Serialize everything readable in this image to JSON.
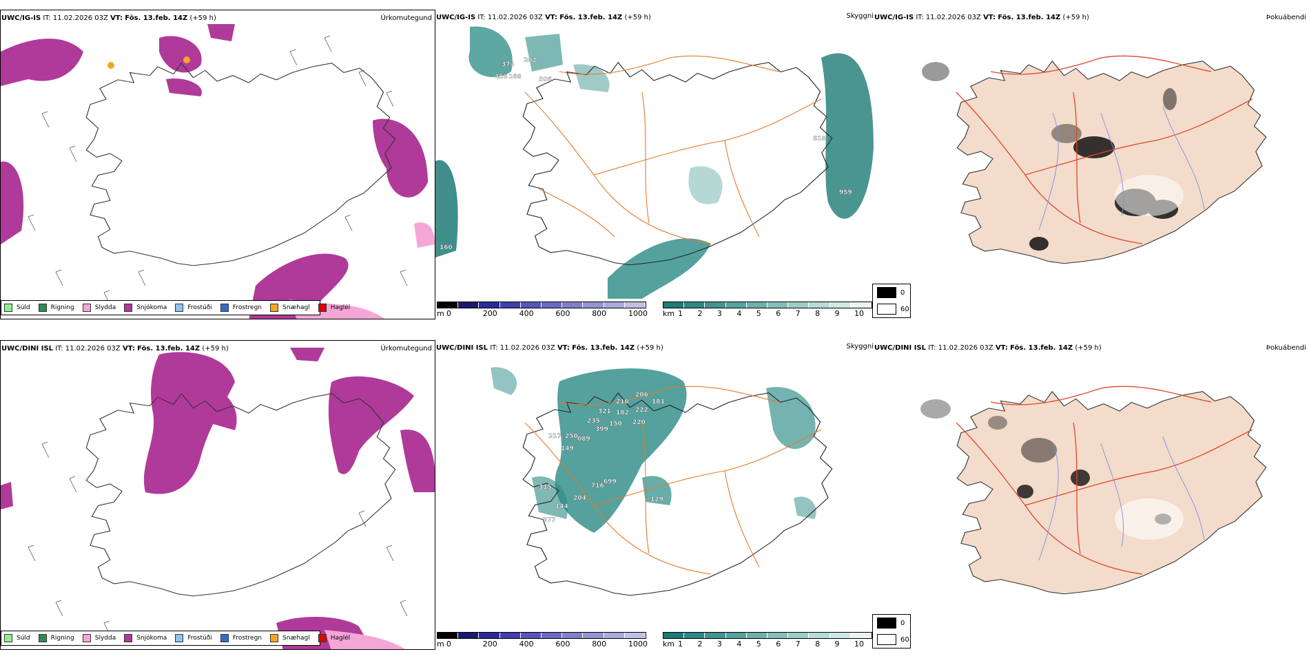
{
  "panels": {
    "top_precip": {
      "title": {
        "model": "UWC/IG-IS",
        "it_label": "IT:",
        "it": "11.02.2026 03Z",
        "vt_label": "VT:",
        "vt": "Fös. 13.feb. 14Z",
        "lead": "(+59 h)"
      },
      "name": "Úrkomutegund"
    },
    "top_vis": {
      "title": {
        "model": "UWC/IG-IS",
        "it_label": "IT:",
        "it": "11.02.2026 03Z",
        "vt_label": "VT:",
        "vt": "Fös. 13.feb. 14Z",
        "lead": "(+59 h)"
      },
      "name": "Skyggni",
      "labels": [
        "374",
        "202",
        "456",
        "168",
        "506",
        "618",
        "959",
        "160"
      ]
    },
    "top_fog": {
      "title": {
        "model": "UWC/IG-IS",
        "it_label": "IT:",
        "it": "11.02.2026 03Z",
        "vt_label": "VT:",
        "vt": "Fös. 13.feb. 14Z",
        "lead": "(+59 h)"
      },
      "name": "Þokuábendi"
    },
    "bottom_precip": {
      "title": {
        "model": "UWC/DINI ISL",
        "it_label": "IT:",
        "it": "11.02.2026 03Z",
        "vt_label": "VT:",
        "vt": "Fös. 13.feb. 14Z",
        "lead": "(+59 h)"
      },
      "name": "Úrkomutegund"
    },
    "bottom_vis": {
      "title": {
        "model": "UWC/DINI ISL",
        "it_label": "IT:",
        "it": "11.02.2026 03Z",
        "vt_label": "VT:",
        "vt": "Fös. 13.feb. 14Z",
        "lead": "(+59 h)"
      },
      "name": "Skyggni",
      "labels": [
        "321",
        "216",
        "206",
        "235",
        "182",
        "222",
        "399",
        "150",
        "220",
        "217",
        "250",
        "089",
        "149",
        "315",
        "716",
        "699",
        "144",
        "204",
        "129",
        "377",
        "181"
      ]
    },
    "bottom_fog": {
      "title": {
        "model": "UWC/DINI ISL",
        "it_label": "IT:",
        "it": "11.02.2026 03Z",
        "vt_label": "VT:",
        "vt": "Fös. 13.feb. 14Z",
        "lead": "(+59 h)"
      },
      "name": "Þokuábendi"
    }
  },
  "precip_legend": [
    {
      "label": "Súld",
      "color": "#90ee90"
    },
    {
      "label": "Rigning",
      "color": "#2e8b57"
    },
    {
      "label": "Slydda",
      "color": "#f4a6d7"
    },
    {
      "label": "Snjókoma",
      "color": "#b03a9a"
    },
    {
      "label": "Frostúði",
      "color": "#8ec3f0"
    },
    {
      "label": "Frostregn",
      "color": "#2f6fc9"
    },
    {
      "label": "Snæhagl",
      "color": "#f5a623"
    },
    {
      "label": "Haglél",
      "color": "#e00000"
    }
  ],
  "elev_scale": {
    "unit": "m",
    "ticks": [
      "0",
      "200",
      "400",
      "600",
      "800",
      "1000"
    ],
    "colors": [
      "#000000",
      "#1a1a70",
      "#2a2a9a",
      "#4040b0",
      "#5555bb",
      "#6a6ac4",
      "#8080cc",
      "#9595d4",
      "#aaaadc",
      "#c0c0e6"
    ]
  },
  "vis_scale": {
    "unit": "km",
    "ticks": [
      "1",
      "2",
      "3",
      "4",
      "5",
      "6",
      "7",
      "8",
      "9",
      "10"
    ],
    "colors": [
      "#1e7a74",
      "#2e8882",
      "#3f9690",
      "#55a39e",
      "#6cb1ac",
      "#84bfba",
      "#9ccdc9",
      "#b6dbd8",
      "#d0e9e7",
      "#e8f5f4"
    ]
  },
  "cloud_legend": [
    {
      "label": "0",
      "color": "#000000"
    },
    {
      "label": "60",
      "color": "#ffffff"
    }
  ],
  "colors": {
    "snow": "#b03a9a",
    "sleet": "#f4a6d7",
    "rain": "#2e8b57",
    "teal": "#2a8a84",
    "road": "#e8782a",
    "land": "#f3dccb",
    "river": "#7a8ee8",
    "redroad": "#e0452a"
  }
}
